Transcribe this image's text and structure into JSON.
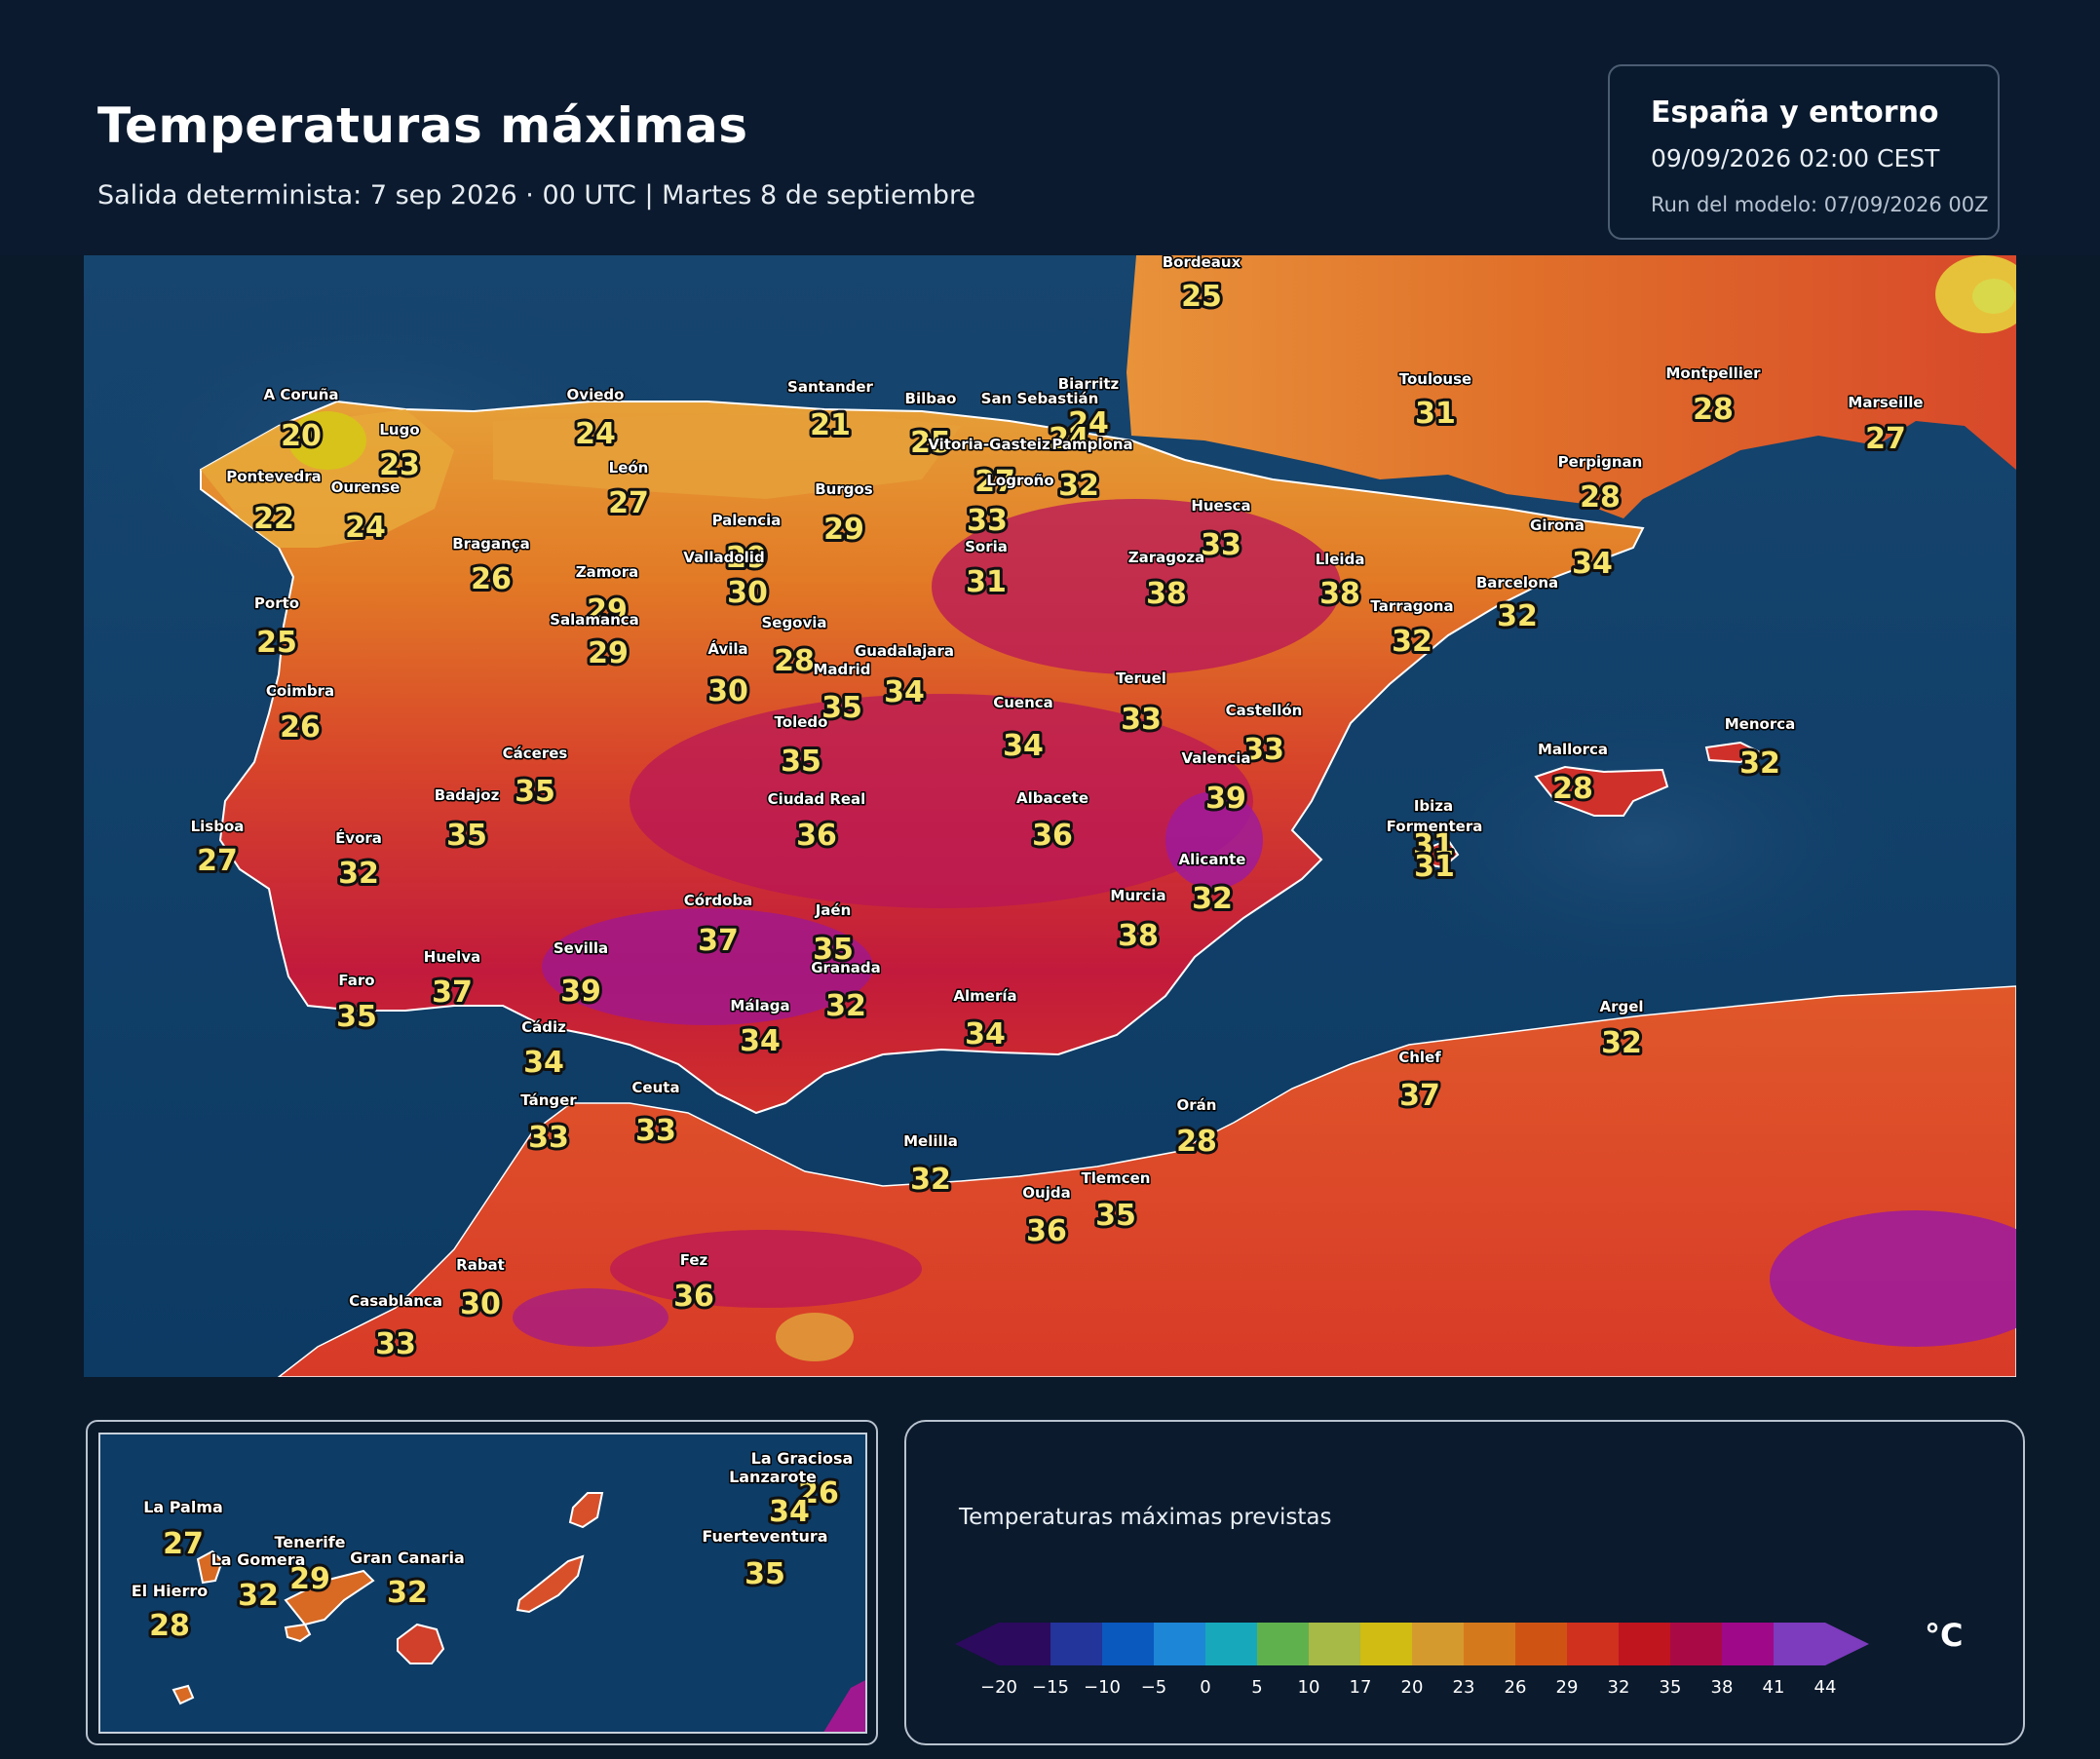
{
  "header": {
    "title": "Temperaturas máximas",
    "subtitle": "Salida determinista: 7 sep 2026 · 00 UTC  |  Martes 8 de septiembre"
  },
  "info": {
    "region": "España y entorno",
    "valid": "09/09/2026  02:00 CEST",
    "run": "Run del modelo: 07/09/2026 00Z"
  },
  "legend": {
    "title": "Temperaturas máximas previstas",
    "unit": "°C",
    "ticks": [
      "−20",
      "−15",
      "−10",
      "−5",
      "0",
      "5",
      "10",
      "17",
      "20",
      "23",
      "26",
      "29",
      "32",
      "35",
      "38",
      "41",
      "44"
    ],
    "colors": [
      "#2c0a5e",
      "#23349a",
      "#0a59bf",
      "#1d86d6",
      "#17a8bc",
      "#5fb14e",
      "#a7b946",
      "#d0bc12",
      "#d49a2e",
      "#d47a1c",
      "#cf5414",
      "#d0301e",
      "#c0141f",
      "#a90a45",
      "#a0088a",
      "#7d3bbd"
    ]
  },
  "colors": {
    "sea": "#0d3c66",
    "land_cool": "#e8a433",
    "land_warm": "#e07020",
    "land_hot": "#d83a22",
    "land_very_hot": "#b8145a",
    "land_extreme": "#9c1aa0",
    "yellow": "#e0d21a"
  },
  "cities": [
    {
      "name": "Bordeaux",
      "temp": "25"
    },
    {
      "name": "Toulouse",
      "temp": "31"
    },
    {
      "name": "Montpellier",
      "temp": "28"
    },
    {
      "name": "Marseille",
      "temp": "27"
    },
    {
      "name": "Biarritz",
      "temp": "24"
    },
    {
      "name": "Perpignan",
      "temp": "28"
    },
    {
      "name": "A Coruña",
      "temp": "20"
    },
    {
      "name": "Lugo",
      "temp": "23"
    },
    {
      "name": "Oviedo",
      "temp": "24"
    },
    {
      "name": "Santander",
      "temp": "21"
    },
    {
      "name": "Bilbao",
      "temp": "25"
    },
    {
      "name": "San Sebastián",
      "temp": "24"
    },
    {
      "name": "Vitoria-Gasteiz",
      "temp": "27"
    },
    {
      "name": "Pamplona",
      "temp": "32"
    },
    {
      "name": "Logroño",
      "temp": "33"
    },
    {
      "name": "Pontevedra",
      "temp": "22"
    },
    {
      "name": "Ourense",
      "temp": "24"
    },
    {
      "name": "León",
      "temp": "27"
    },
    {
      "name": "Burgos",
      "temp": "29"
    },
    {
      "name": "Palencia",
      "temp": "29"
    },
    {
      "name": "Huesca",
      "temp": "33"
    },
    {
      "name": "Girona",
      "temp": "34"
    },
    {
      "name": "Bragança",
      "temp": "26"
    },
    {
      "name": "Zamora",
      "temp": "29"
    },
    {
      "name": "Valladolid",
      "temp": "30"
    },
    {
      "name": "Soria",
      "temp": "31"
    },
    {
      "name": "Zaragoza",
      "temp": "38"
    },
    {
      "name": "Lleida",
      "temp": "38"
    },
    {
      "name": "Barcelona",
      "temp": "32"
    },
    {
      "name": "Tarragona",
      "temp": "32"
    },
    {
      "name": "Porto",
      "temp": "25"
    },
    {
      "name": "Salamanca",
      "temp": "29"
    },
    {
      "name": "Segovia",
      "temp": "28"
    },
    {
      "name": "Ávila",
      "temp": "30"
    },
    {
      "name": "Guadalajara",
      "temp": "34"
    },
    {
      "name": "Madrid",
      "temp": "35"
    },
    {
      "name": "Teruel",
      "temp": "33"
    },
    {
      "name": "Coimbra",
      "temp": "26"
    },
    {
      "name": "Toledo",
      "temp": "35"
    },
    {
      "name": "Cuenca",
      "temp": "34"
    },
    {
      "name": "Castellón",
      "temp": "33"
    },
    {
      "name": "Cáceres",
      "temp": "35"
    },
    {
      "name": "Valencia",
      "temp": "39"
    },
    {
      "name": "Menorca",
      "temp": "32"
    },
    {
      "name": "Mallorca",
      "temp": "28"
    },
    {
      "name": "Badajoz",
      "temp": "35"
    },
    {
      "name": "Ciudad Real",
      "temp": "36"
    },
    {
      "name": "Albacete",
      "temp": "36"
    },
    {
      "name": "Ibiza",
      "temp": "31"
    },
    {
      "name": "Formentera",
      "temp": "31"
    },
    {
      "name": "Lisboa",
      "temp": "27"
    },
    {
      "name": "Évora",
      "temp": "32"
    },
    {
      "name": "Alicante",
      "temp": "32"
    },
    {
      "name": "Córdoba",
      "temp": "37"
    },
    {
      "name": "Jaén",
      "temp": "35"
    },
    {
      "name": "Murcia",
      "temp": "38"
    },
    {
      "name": "Huelva",
      "temp": "37"
    },
    {
      "name": "Sevilla",
      "temp": "39"
    },
    {
      "name": "Granada",
      "temp": "32"
    },
    {
      "name": "Faro",
      "temp": "35"
    },
    {
      "name": "Almería",
      "temp": "34"
    },
    {
      "name": "Málaga",
      "temp": "34"
    },
    {
      "name": "Cádiz",
      "temp": "34"
    },
    {
      "name": "Argel",
      "temp": "32"
    },
    {
      "name": "Chlef",
      "temp": "37"
    },
    {
      "name": "Tánger",
      "temp": "33"
    },
    {
      "name": "Ceuta",
      "temp": "33"
    },
    {
      "name": "Orán",
      "temp": "28"
    },
    {
      "name": "Melilla",
      "temp": "32"
    },
    {
      "name": "Oujda",
      "temp": "36"
    },
    {
      "name": "Tlemcen",
      "temp": "35"
    },
    {
      "name": "Rabat",
      "temp": "30"
    },
    {
      "name": "Fez",
      "temp": "36"
    },
    {
      "name": "Casablanca",
      "temp": "33"
    }
  ],
  "canarias": [
    {
      "name": "La Graciosa",
      "temp": "26"
    },
    {
      "name": "Lanzarote",
      "temp": "34"
    },
    {
      "name": "La Palma",
      "temp": "27"
    },
    {
      "name": "Tenerife",
      "temp": "29"
    },
    {
      "name": "Fuerteventura",
      "temp": "35"
    },
    {
      "name": "La Gomera",
      "temp": "32"
    },
    {
      "name": "Gran Canaria",
      "temp": "32"
    },
    {
      "name": "El Hierro",
      "temp": "28"
    }
  ]
}
